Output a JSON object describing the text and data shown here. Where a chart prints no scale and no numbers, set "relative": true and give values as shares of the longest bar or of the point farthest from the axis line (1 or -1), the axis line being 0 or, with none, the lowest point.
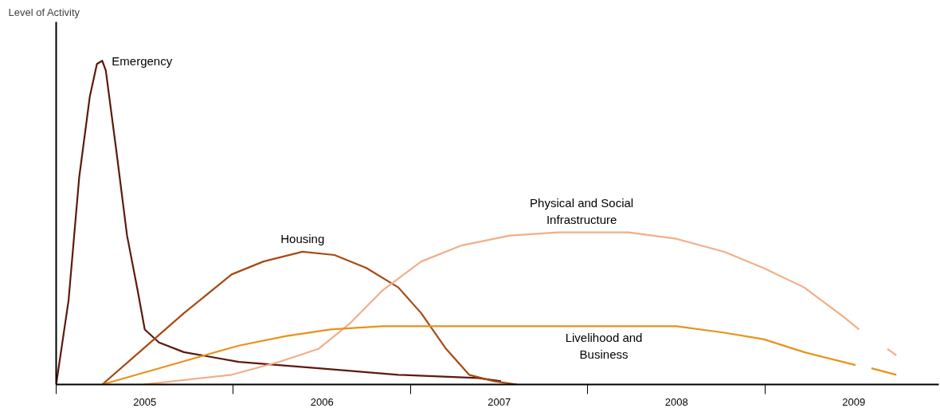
{
  "chart_data": {
    "type": "line",
    "relative": true,
    "ylabel": "Level of Activity",
    "grid": false,
    "marker": "none",
    "line_style": "solid",
    "xlim": [
      2005,
      2009.98
    ],
    "xticks": [
      {
        "value": 2005,
        "label": null
      },
      {
        "value": 2005.5,
        "label": "2005"
      },
      {
        "value": 2006,
        "label": null
      },
      {
        "value": 2006.5,
        "label": "2006"
      },
      {
        "value": 2007,
        "label": null
      },
      {
        "value": 2007.5,
        "label": "2007"
      },
      {
        "value": 2008,
        "label": null
      },
      {
        "value": 2008.5,
        "label": "2008"
      },
      {
        "value": 2009,
        "label": null
      },
      {
        "value": 2009.5,
        "label": "2009"
      }
    ],
    "series": [
      {
        "name": "Emergency",
        "color": "#5c1a0e",
        "x": [
          2005.0,
          2005.07,
          2005.13,
          2005.19,
          2005.23,
          2005.26,
          2005.28,
          2005.34,
          2005.4,
          2005.46,
          2005.5,
          2005.58,
          2005.72,
          2006.03,
          2006.48,
          2006.93,
          2007.38,
          2007.51
        ],
        "values": [
          0,
          0.26,
          0.64,
          0.89,
          0.99,
          1,
          0.97,
          0.72,
          0.46,
          0.29,
          0.17,
          0.13,
          0.1,
          0.07,
          0.05,
          0.03,
          0.02,
          0.01
        ]
      },
      {
        "name": "Housing",
        "color": "#a84a12",
        "x": [
          2005.26,
          2005.49,
          2005.72,
          2005.99,
          2006.17,
          2006.39,
          2006.57,
          2006.75,
          2006.93,
          2007.06,
          2007.2,
          2007.33,
          2007.47,
          2007.6
        ],
        "values": [
          0,
          0.11,
          0.22,
          0.34,
          0.38,
          0.41,
          0.4,
          0.36,
          0.3,
          0.22,
          0.11,
          0.03,
          0.01,
          0
        ]
      },
      {
        "name": "Physical and Social\nInfrastructure",
        "color": "#f2ae88",
        "x": [
          2005.49,
          2005.99,
          2006.26,
          2006.48,
          2006.66,
          2006.84,
          2007.06,
          2007.29,
          2007.56,
          2007.83,
          2008.23,
          2008.5,
          2008.77,
          2008.99,
          2009.22,
          2009.44,
          2009.53,
          2009.6,
          2009.69,
          2009.74
        ],
        "values": [
          0,
          0.03,
          0.07,
          0.11,
          0.19,
          0.29,
          0.38,
          0.43,
          0.46,
          0.47,
          0.47,
          0.45,
          0.41,
          0.36,
          0.3,
          0.21,
          0.17,
          null,
          0.11,
          0.09
        ]
      },
      {
        "name": "Livelihood and\nBusiness",
        "color": "#e8921a",
        "x": [
          2005.26,
          2005.58,
          2006.03,
          2006.3,
          2006.55,
          2006.84,
          2007.38,
          2008.27,
          2008.5,
          2008.77,
          2008.99,
          2009.22,
          2009.51,
          2009.55,
          2009.6,
          2009.74
        ],
        "values": [
          0,
          0.05,
          0.12,
          0.15,
          0.17,
          0.18,
          0.18,
          0.18,
          0.18,
          0.16,
          0.14,
          0.1,
          0.06,
          null,
          0.05,
          0.03
        ]
      }
    ]
  }
}
